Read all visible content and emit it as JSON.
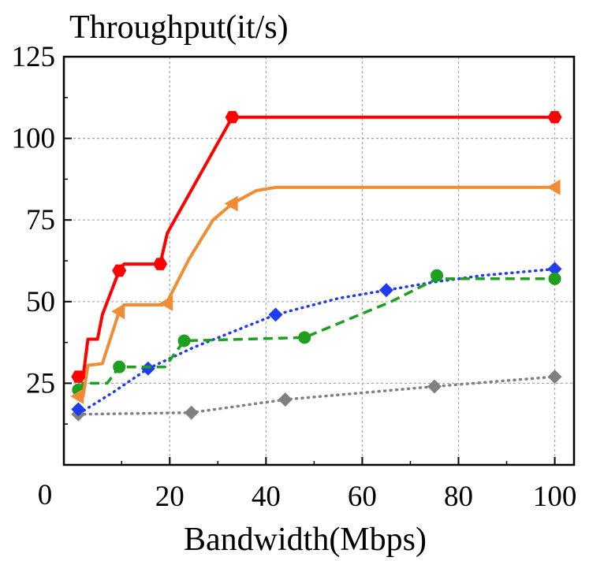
{
  "chart_data": {
    "type": "line",
    "title": "",
    "ylabel": "Throughput(it/s)",
    "xlabel": "Bandwidth(Mbps)",
    "xlim": [
      -2,
      104
    ],
    "ylim": [
      0,
      125
    ],
    "x_ticks": [
      20,
      40,
      60,
      80,
      100
    ],
    "y_ticks": [
      0,
      25,
      50,
      75,
      100,
      125
    ],
    "grid": true,
    "legend": "none",
    "series": [
      {
        "color": "#ff0000",
        "line_style": "solid",
        "marker": "hexagon",
        "markers": [
          [
            1,
            27
          ],
          [
            9.5,
            59.5
          ],
          [
            18,
            61.5
          ],
          [
            33,
            106.5
          ],
          [
            100,
            106.5
          ]
        ],
        "line": [
          [
            1,
            27
          ],
          [
            2,
            27
          ],
          [
            3,
            38.5
          ],
          [
            5,
            38.5
          ],
          [
            6,
            46
          ],
          [
            9.5,
            59.5
          ],
          [
            10.5,
            61.5
          ],
          [
            18,
            61.5
          ],
          [
            19.5,
            71
          ],
          [
            33,
            106.5
          ],
          [
            100,
            106.5
          ]
        ]
      },
      {
        "color": "#f08c34",
        "line_style": "solid",
        "marker": "triangle-left",
        "markers": [
          [
            1,
            21
          ],
          [
            9.5,
            47
          ],
          [
            19.5,
            49.5
          ],
          [
            33,
            80
          ],
          [
            100,
            85
          ]
        ],
        "line": [
          [
            1,
            21
          ],
          [
            2,
            21
          ],
          [
            3,
            30.5
          ],
          [
            6,
            31
          ],
          [
            9.5,
            47
          ],
          [
            10.5,
            49
          ],
          [
            18.5,
            49
          ],
          [
            19.5,
            50
          ],
          [
            24,
            63
          ],
          [
            29,
            75
          ],
          [
            33,
            80
          ],
          [
            38,
            84
          ],
          [
            42,
            85
          ],
          [
            100,
            85
          ]
        ]
      },
      {
        "color": "#1ea01e",
        "line_style": "dashed",
        "marker": "circle",
        "markers": [
          [
            1,
            23
          ],
          [
            9.5,
            30
          ],
          [
            23,
            38
          ],
          [
            48,
            39
          ],
          [
            75.5,
            58
          ],
          [
            100,
            57
          ]
        ],
        "line": [
          [
            1,
            23
          ],
          [
            2,
            25
          ],
          [
            7,
            25
          ],
          [
            9.5,
            30
          ],
          [
            19,
            30
          ],
          [
            23,
            38
          ],
          [
            48,
            39
          ],
          [
            66,
            50
          ],
          [
            75.5,
            57
          ],
          [
            100,
            57
          ]
        ]
      },
      {
        "color": "#1e3cf0",
        "line_style": "dotted",
        "marker": "diamond",
        "markers": [
          [
            1,
            17
          ],
          [
            15.5,
            29.5
          ],
          [
            42,
            46
          ],
          [
            65,
            53.5
          ],
          [
            100,
            60
          ]
        ],
        "line": [
          [
            1,
            17
          ],
          [
            2,
            16.5
          ],
          [
            8,
            22
          ],
          [
            15.5,
            29.5
          ],
          [
            25,
            36
          ],
          [
            42,
            46
          ],
          [
            55,
            51
          ],
          [
            65,
            53.5
          ],
          [
            75,
            56
          ],
          [
            85,
            58
          ],
          [
            100,
            60
          ]
        ]
      },
      {
        "color": "#808080",
        "line_style": "dotted",
        "marker": "diamond",
        "markers": [
          [
            1,
            15.5
          ],
          [
            24.5,
            16
          ],
          [
            44,
            20
          ],
          [
            75,
            24
          ],
          [
            100,
            27
          ]
        ],
        "line": [
          [
            1,
            15.5
          ],
          [
            24.5,
            16
          ],
          [
            44,
            20
          ],
          [
            75,
            24
          ],
          [
            100,
            27
          ]
        ]
      }
    ]
  }
}
